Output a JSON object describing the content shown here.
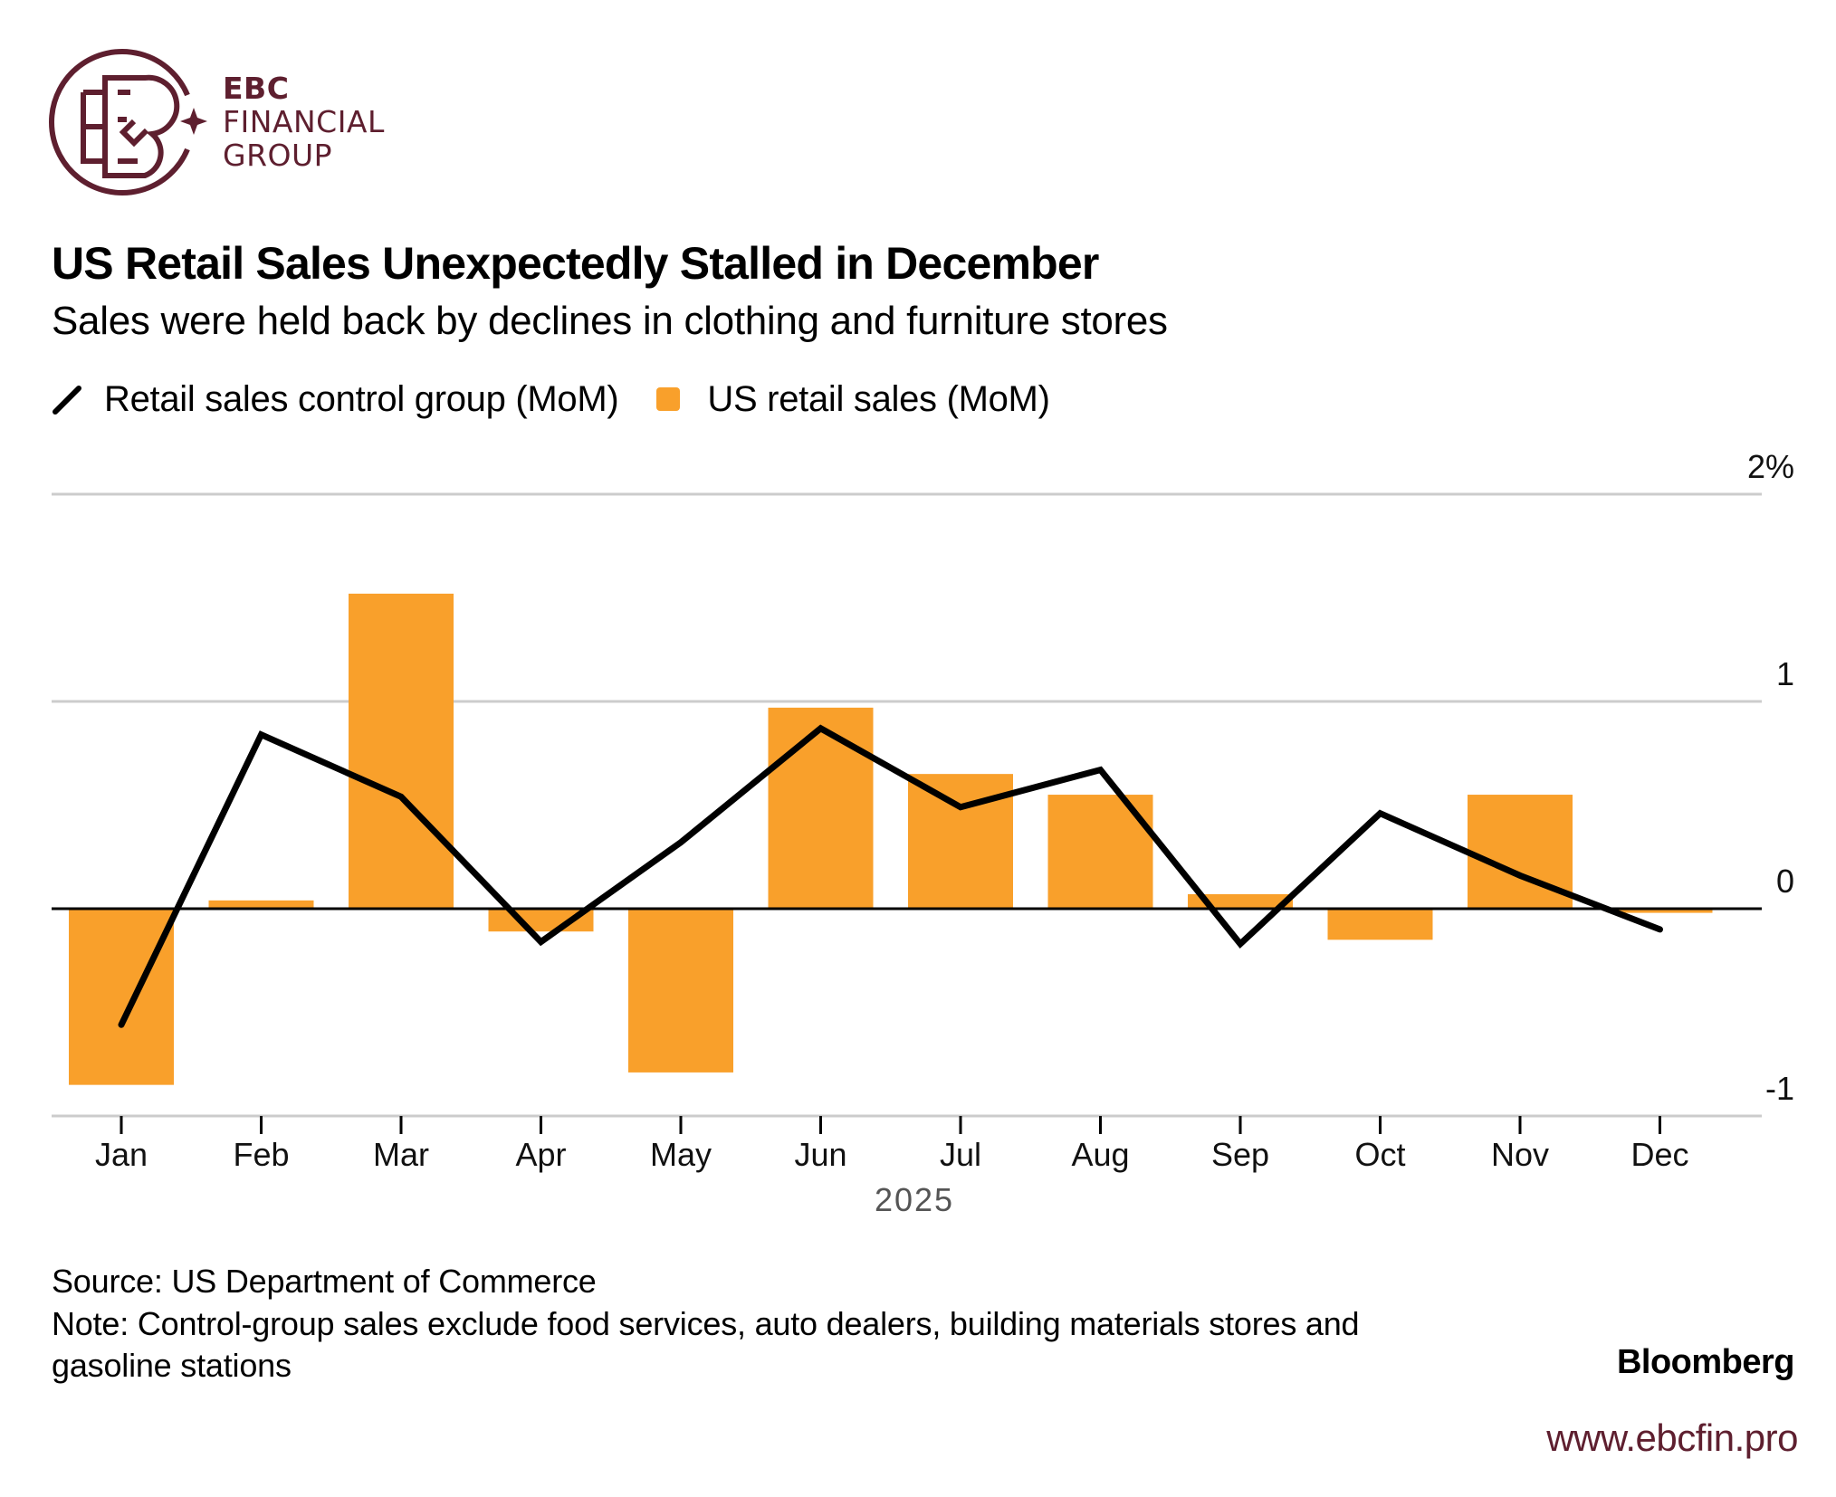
{
  "brand": {
    "line1": "EBC",
    "line2": "FINANCIAL",
    "line3": "GROUP",
    "color": "#5e1f2f",
    "url": "www.ebcfin.pro"
  },
  "colors": {
    "bar": "#f9a02b",
    "line": "#000000",
    "grid": "#cccccc",
    "zero": "#000000"
  },
  "footer": {
    "source": "Source: US Department of Commerce",
    "note_line1": "Note: Control-group sales exclude food services, auto dealers, building materials stores and",
    "note_line2": "gasoline stations",
    "credit": "Bloomberg"
  },
  "chart_data": {
    "type": "bar",
    "title": "US Retail Sales Unexpectedly Stalled in December",
    "subtitle": "Sales were held back by declines in clothing and furniture stores",
    "xlabel": "2025",
    "ylabel": "",
    "categories": [
      "Jan",
      "Feb",
      "Mar",
      "Apr",
      "May",
      "Jun",
      "Jul",
      "Aug",
      "Sep",
      "Oct",
      "Nov",
      "Dec"
    ],
    "ylim": [
      -1,
      2
    ],
    "yticks": [
      {
        "value": 2,
        "label": "2%"
      },
      {
        "value": 1,
        "label": "1"
      },
      {
        "value": 0,
        "label": "0"
      },
      {
        "value": -1,
        "label": "-1"
      }
    ],
    "grid": true,
    "legend_position": "top-left",
    "series": [
      {
        "name": "Retail sales control group (MoM)",
        "type": "line",
        "values": [
          -0.56,
          0.84,
          0.54,
          -0.16,
          0.32,
          0.87,
          0.49,
          0.67,
          -0.17,
          0.46,
          0.16,
          -0.1
        ]
      },
      {
        "name": "US retail sales (MoM)",
        "type": "bar",
        "values": [
          -0.85,
          0.04,
          1.52,
          -0.11,
          -0.79,
          0.97,
          0.65,
          0.55,
          0.07,
          -0.15,
          0.55,
          -0.02
        ]
      }
    ]
  }
}
